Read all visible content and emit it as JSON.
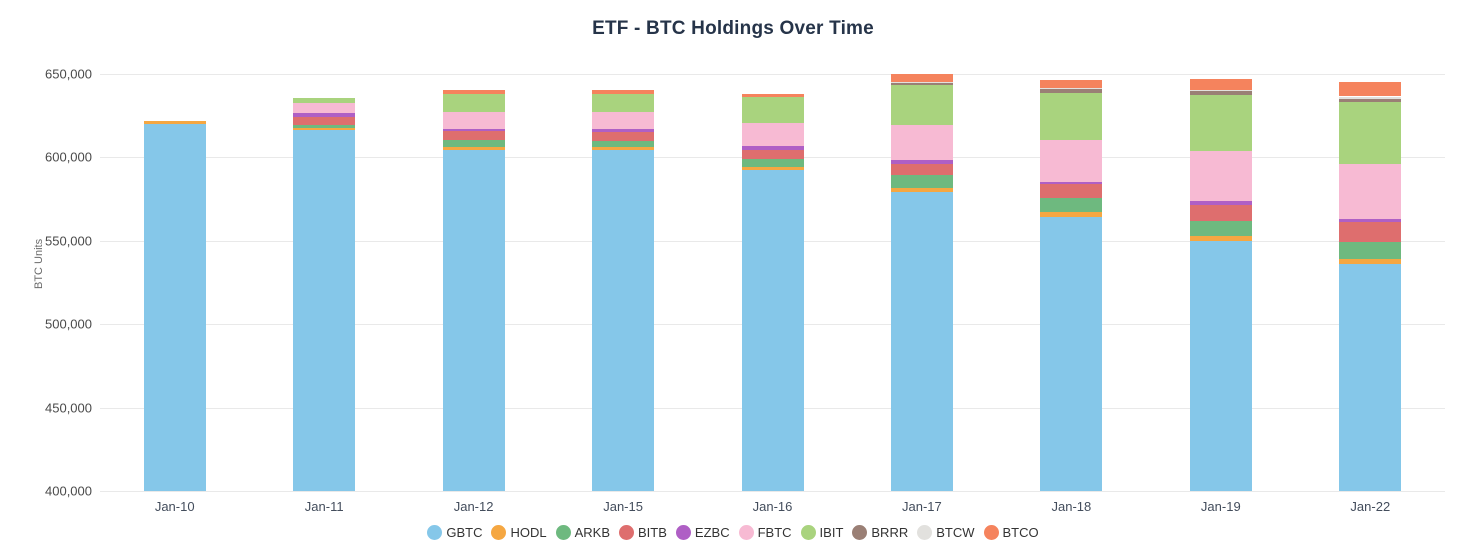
{
  "chart_data": {
    "type": "bar",
    "stacked": true,
    "title": "ETF - BTC Holdings Over Time",
    "ylabel": "BTC Units",
    "xlabel": "",
    "grid": true,
    "legend_position": "bottom",
    "ylim": [
      400000,
      650000
    ],
    "yticks": [
      {
        "value": 400000,
        "label": "400,000"
      },
      {
        "value": 450000,
        "label": "450,000"
      },
      {
        "value": 500000,
        "label": "500,000"
      },
      {
        "value": 550000,
        "label": "550,000"
      },
      {
        "value": 600000,
        "label": "600,000"
      },
      {
        "value": 650000,
        "label": "650,000"
      }
    ],
    "categories": [
      "Jan-10",
      "Jan-11",
      "Jan-12",
      "Jan-15",
      "Jan-16",
      "Jan-17",
      "Jan-18",
      "Jan-19",
      "Jan-22"
    ],
    "series": [
      {
        "name": "GBTC",
        "color": "#85C7E9",
        "values": [
          619800,
          616400,
          604300,
          604400,
          592400,
          579300,
          564500,
          549700,
          535900
        ]
      },
      {
        "name": "HODL",
        "color": "#F5A742",
        "values": [
          2000,
          1500,
          2000,
          2000,
          2000,
          2400,
          2600,
          3000,
          3000
        ]
      },
      {
        "name": "ARKB",
        "color": "#6EB97F",
        "values": [
          0,
          1500,
          4000,
          3600,
          4400,
          7500,
          8400,
          9400,
          10600
        ]
      },
      {
        "name": "BITB",
        "color": "#DE6E6E",
        "values": [
          0,
          5000,
          5600,
          5400,
          5600,
          6600,
          8600,
          9600,
          11600
        ]
      },
      {
        "name": "EZBC",
        "color": "#AF5FC5",
        "values": [
          0,
          2400,
          1400,
          1400,
          2400,
          2400,
          1400,
          2000,
          2000
        ]
      },
      {
        "name": "FBTC",
        "color": "#F7BAD3",
        "values": [
          0,
          6000,
          10000,
          10500,
          14000,
          21500,
          25000,
          30400,
          32800
        ]
      },
      {
        "name": "IBIT",
        "color": "#A9D37E",
        "values": [
          0,
          3000,
          11000,
          11000,
          15500,
          23800,
          28400,
          33600,
          37600
        ]
      },
      {
        "name": "BRRR",
        "color": "#9A7F75",
        "values": [
          0,
          0,
          0,
          0,
          0,
          1500,
          2000,
          2000,
          1800
        ]
      },
      {
        "name": "BTCW",
        "color": "#E2E1DE",
        "values": [
          0,
          0,
          0,
          0,
          0,
          500,
          500,
          600,
          1200
        ]
      },
      {
        "name": "BTCO",
        "color": "#F5835D",
        "values": [
          0,
          0,
          2400,
          2000,
          2000,
          4500,
          5200,
          6600,
          8600
        ]
      }
    ]
  }
}
